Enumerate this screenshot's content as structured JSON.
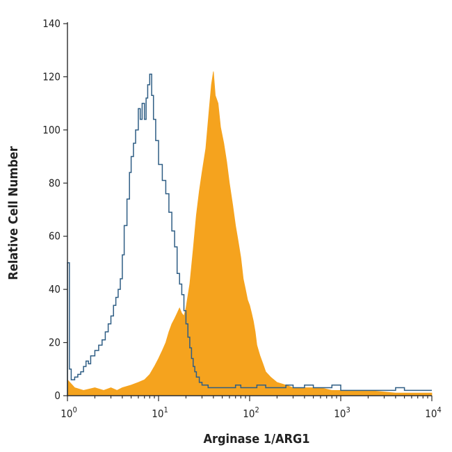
{
  "chart_data": {
    "type": "histogram",
    "xlabel": "Arginase 1/ARG1",
    "ylabel": "Relative Cell Number",
    "xscale": "log",
    "xlim": [
      1,
      10000
    ],
    "ylim": [
      0,
      140
    ],
    "x_ticks": [
      {
        "value": 1,
        "base": "10",
        "exp": "0"
      },
      {
        "value": 10,
        "base": "10",
        "exp": "1"
      },
      {
        "value": 100,
        "base": "10",
        "exp": "2"
      },
      {
        "value": 1000,
        "base": "10",
        "exp": "3"
      },
      {
        "value": 10000,
        "base": "10",
        "exp": "4"
      }
    ],
    "y_ticks": [
      0,
      20,
      40,
      60,
      80,
      100,
      120,
      140
    ],
    "grid": false,
    "series": [
      {
        "style": "filled",
        "color": "#F5A31E",
        "points": [
          [
            1.0,
            6
          ],
          [
            1.2,
            3
          ],
          [
            1.5,
            2
          ],
          [
            2.0,
            3
          ],
          [
            2.5,
            2
          ],
          [
            3.0,
            3
          ],
          [
            3.5,
            2
          ],
          [
            4.0,
            3
          ],
          [
            5.0,
            4
          ],
          [
            6.0,
            5
          ],
          [
            7.0,
            6
          ],
          [
            8.0,
            8
          ],
          [
            9.0,
            11
          ],
          [
            10.0,
            14
          ],
          [
            11.0,
            17
          ],
          [
            12.0,
            20
          ],
          [
            13.0,
            24
          ],
          [
            14.0,
            27
          ],
          [
            15.0,
            29
          ],
          [
            16.0,
            31
          ],
          [
            17.0,
            33
          ],
          [
            18.0,
            31
          ],
          [
            19.0,
            30
          ],
          [
            20.0,
            33
          ],
          [
            22.0,
            42
          ],
          [
            24.0,
            55
          ],
          [
            26.0,
            68
          ],
          [
            28.0,
            77
          ],
          [
            30.0,
            84
          ],
          [
            33.0,
            93
          ],
          [
            36.0,
            108
          ],
          [
            38.0,
            117
          ],
          [
            40.0,
            122
          ],
          [
            42.0,
            113
          ],
          [
            45.0,
            110
          ],
          [
            48.0,
            101
          ],
          [
            52.0,
            95
          ],
          [
            56.0,
            88
          ],
          [
            60.0,
            80
          ],
          [
            65.0,
            72
          ],
          [
            70.0,
            64
          ],
          [
            75.0,
            58
          ],
          [
            80.0,
            52
          ],
          [
            85.0,
            44
          ],
          [
            90.0,
            40
          ],
          [
            95.0,
            36
          ],
          [
            100.0,
            34
          ],
          [
            105.0,
            31
          ],
          [
            110.0,
            28
          ],
          [
            115.0,
            24
          ],
          [
            120.0,
            19
          ],
          [
            130.0,
            15
          ],
          [
            140.0,
            12
          ],
          [
            150.0,
            9
          ],
          [
            170.0,
            7
          ],
          [
            200.0,
            5
          ],
          [
            250.0,
            4
          ],
          [
            300.0,
            3
          ],
          [
            400.0,
            3
          ],
          [
            600.0,
            3
          ],
          [
            800.0,
            2
          ],
          [
            1000.0,
            2
          ],
          [
            2000.0,
            2
          ],
          [
            4000.0,
            1
          ],
          [
            10000.0,
            1
          ]
        ]
      },
      {
        "style": "outline",
        "color": "#2E5D84",
        "points": [
          [
            1.0,
            50
          ],
          [
            1.05,
            10
          ],
          [
            1.1,
            6
          ],
          [
            1.2,
            7
          ],
          [
            1.3,
            8
          ],
          [
            1.4,
            9
          ],
          [
            1.5,
            11
          ],
          [
            1.6,
            13
          ],
          [
            1.7,
            12
          ],
          [
            1.8,
            15
          ],
          [
            2.0,
            17
          ],
          [
            2.2,
            19
          ],
          [
            2.4,
            21
          ],
          [
            2.6,
            24
          ],
          [
            2.8,
            27
          ],
          [
            3.0,
            30
          ],
          [
            3.2,
            34
          ],
          [
            3.4,
            37
          ],
          [
            3.6,
            40
          ],
          [
            3.8,
            44
          ],
          [
            4.0,
            53
          ],
          [
            4.2,
            64
          ],
          [
            4.5,
            74
          ],
          [
            4.8,
            84
          ],
          [
            5.0,
            90
          ],
          [
            5.3,
            95
          ],
          [
            5.6,
            100
          ],
          [
            6.0,
            108
          ],
          [
            6.3,
            104
          ],
          [
            6.6,
            110
          ],
          [
            7.0,
            104
          ],
          [
            7.3,
            112
          ],
          [
            7.6,
            117
          ],
          [
            8.0,
            121
          ],
          [
            8.4,
            113
          ],
          [
            8.8,
            104
          ],
          [
            9.3,
            96
          ],
          [
            10.0,
            87
          ],
          [
            11.0,
            81
          ],
          [
            12.0,
            76
          ],
          [
            13.0,
            69
          ],
          [
            14.0,
            62
          ],
          [
            15.0,
            56
          ],
          [
            16.0,
            46
          ],
          [
            17.0,
            42
          ],
          [
            18.0,
            38
          ],
          [
            19.0,
            32
          ],
          [
            20.0,
            27
          ],
          [
            21.0,
            22
          ],
          [
            22.0,
            18
          ],
          [
            23.0,
            14
          ],
          [
            24.0,
            11
          ],
          [
            25.0,
            9
          ],
          [
            26.0,
            7
          ],
          [
            28.0,
            5
          ],
          [
            30.0,
            4
          ],
          [
            35.0,
            3
          ],
          [
            40.0,
            3
          ],
          [
            50.0,
            3
          ],
          [
            60.0,
            3
          ],
          [
            70.0,
            4
          ],
          [
            80.0,
            3
          ],
          [
            100.0,
            3
          ],
          [
            120.0,
            4
          ],
          [
            150.0,
            3
          ],
          [
            200.0,
            3
          ],
          [
            250.0,
            4
          ],
          [
            300.0,
            3
          ],
          [
            400.0,
            4
          ],
          [
            500.0,
            3
          ],
          [
            600.0,
            3
          ],
          [
            800.0,
            4
          ],
          [
            1000.0,
            2
          ],
          [
            2000.0,
            2
          ],
          [
            4000.0,
            3
          ],
          [
            5000.0,
            2
          ],
          [
            10000.0,
            2
          ]
        ]
      }
    ]
  }
}
